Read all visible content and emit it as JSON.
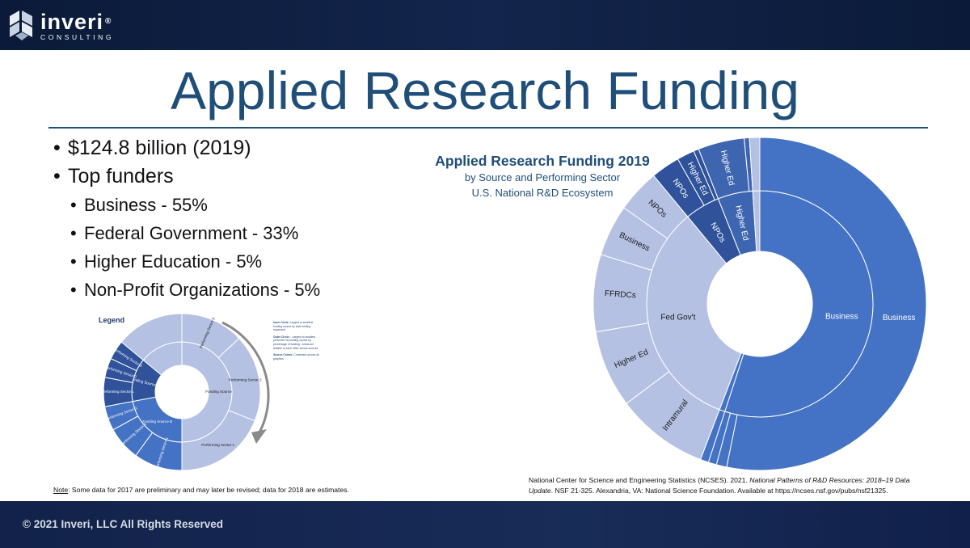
{
  "header": {
    "logo_name": "inveri",
    "logo_reg": "®",
    "logo_sub": "CONSULTING"
  },
  "title": "Applied Research Funding",
  "bullets": [
    {
      "level": 1,
      "text": "$124.8 billion (2019)"
    },
    {
      "level": 1,
      "text": "Top funders"
    },
    {
      "level": 2,
      "text": "Business - 55%"
    },
    {
      "level": 2,
      "text": "Federal Government - 33%"
    },
    {
      "level": 2,
      "text": "Higher Education - 5%"
    },
    {
      "level": 2,
      "text": "Non-Profit Organizations - 5%"
    }
  ],
  "legend": {
    "title": "Legend",
    "inner_label": "Inner Circle:",
    "inner_text": "Largest to smallest funding source by total funding expended",
    "outer_label": "Outer Circle:",
    "outer_text": "- Largest to smallest performer by funding source by percentage of funding - Areas are relative to each other across sources",
    "colors_label": "Source Colors:",
    "colors_text": "Consistent across all graphics",
    "inner": [
      {
        "label": "Funding Source A",
        "value": 50,
        "color": "#b4c1e2"
      },
      {
        "label": "Funding Source B",
        "value": 22,
        "color": "#4472c4"
      },
      {
        "label": "Funding Source C",
        "value": 14,
        "color": "#2f529b"
      },
      {
        "label": "",
        "value": 14,
        "color": "#b4c1e2"
      }
    ],
    "outer": [
      {
        "label": "Performing Sector 3",
        "value": 13,
        "color": "#b4c1e2"
      },
      {
        "label": "Performing Sector 2",
        "value": 18,
        "color": "#b4c1e2"
      },
      {
        "label": "Performing Sector 1",
        "value": 19,
        "color": "#b4c1e2"
      },
      {
        "label": "Performing Sector 1",
        "value": 10,
        "color": "#4472c4"
      },
      {
        "label": "Performing Sector 2",
        "value": 7,
        "color": "#4472c4"
      },
      {
        "label": "Performing Sector 3",
        "value": 5,
        "color": "#4472c4"
      },
      {
        "label": "Performing Sector 1",
        "value": 6,
        "color": "#2f529b"
      },
      {
        "label": "Performing Sector 2",
        "value": 4,
        "color": "#2f529b"
      },
      {
        "label": "Performing Sector 3",
        "value": 4,
        "color": "#2f529b"
      },
      {
        "label": "",
        "value": 14,
        "color": "#b4c1e2"
      }
    ],
    "note_prefix": "Note",
    "note_text": ": Some data for 2017 are preliminary and may later be revised; data for 2018 are estimates."
  },
  "chart_title": "Applied Research Funding 2019",
  "chart_subtitle_1": "by Source and Performing Sector",
  "chart_subtitle_2": "U.S. National R&D Ecosystem",
  "chart_data": {
    "type": "sunburst",
    "title": "Applied Research Funding 2019",
    "subtitle": "by Source and Performing Sector U.S. National R&D Ecosystem",
    "inner": [
      {
        "label": "Business",
        "value": 55.0,
        "color": "#4472c4"
      },
      {
        "label": "",
        "value": 0.8,
        "color": "#4472c4"
      },
      {
        "label": "Fed Gov't",
        "value": 33.2,
        "color": "#b4c1e2"
      },
      {
        "label": "NPOs",
        "value": 5.0,
        "color": "#2f529b"
      },
      {
        "label": "Higher Ed",
        "value": 5.0,
        "color": "#3e66b0"
      },
      {
        "label": "",
        "value": 1.0,
        "color": "#b4c1e2"
      }
    ],
    "outer": [
      {
        "label": "Business",
        "value": 53.2,
        "color": "#4472c4"
      },
      {
        "label": "",
        "value": 1.0,
        "color": "#4472c4"
      },
      {
        "label": "",
        "value": 0.8,
        "color": "#4472c4"
      },
      {
        "label": "",
        "value": 0.8,
        "color": "#4472c4"
      },
      {
        "label": "Intramural",
        "value": 9.0,
        "color": "#b4c1e2"
      },
      {
        "label": "Higher Ed",
        "value": 7.5,
        "color": "#b4c1e2"
      },
      {
        "label": "FFRDCs",
        "value": 7.5,
        "color": "#b4c1e2"
      },
      {
        "label": "Business",
        "value": 5.0,
        "color": "#b4c1e2"
      },
      {
        "label": "NPOs",
        "value": 4.2,
        "color": "#b4c1e2"
      },
      {
        "label": "NPOs",
        "value": 2.8,
        "color": "#2f529b"
      },
      {
        "label": "Higher Ed",
        "value": 1.7,
        "color": "#2f529b"
      },
      {
        "label": "",
        "value": 0.5,
        "color": "#2f529b"
      },
      {
        "label": "Higher Ed",
        "value": 4.5,
        "color": "#3e66b0"
      },
      {
        "label": "",
        "value": 0.5,
        "color": "#3e66b0"
      },
      {
        "label": "",
        "value": 1.0,
        "color": "#b4c1e2"
      }
    ]
  },
  "citation": {
    "part1": "National Center for Science and Engineering Statistics (NCSES). 2021. ",
    "italic": "National Patterns of R&D Resources: 2018–19 Data Update",
    "part2": ". NSF 21-325. Alexandria, VA: National Science Foundation. Available at https://ncses.nsf.gov/pubs/nsf21325."
  },
  "footer": "© 2021 Inveri, LLC All Rights Reserved"
}
